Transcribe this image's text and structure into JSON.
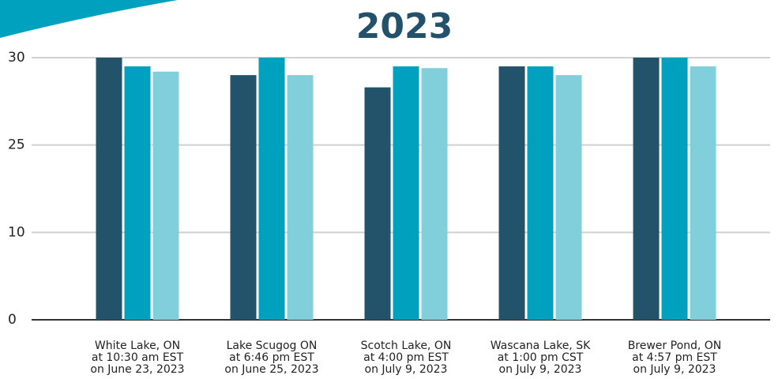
{
  "chart_data": {
    "type": "bar",
    "title": "2023",
    "categories": [
      [
        "White Lake, ON",
        "at 10:30 am EST",
        "on June 23, 2023"
      ],
      [
        "Lake Scugog ON",
        "at 6:46 pm EST",
        "on June 25, 2023"
      ],
      [
        "Scotch Lake, ON",
        "at 4:00 pm EST",
        "on July 9, 2023"
      ],
      [
        "Wascana Lake, SK",
        "at 1:00 pm CST",
        "on July 9, 2023"
      ],
      [
        "Brewer Pond, ON",
        "at 4:57 pm EST",
        "on July 9, 2023"
      ]
    ],
    "series": [
      {
        "color": "#23536b",
        "values": [
          30,
          29,
          28.3,
          29.5,
          30
        ]
      },
      {
        "color": "#00a1bf",
        "values": [
          29.5,
          30,
          29.5,
          29.5,
          30
        ]
      },
      {
        "color": "#82cfdc",
        "values": [
          29.2,
          29,
          29.4,
          29,
          29.5
        ]
      }
    ],
    "ylim": [
      0,
      30
    ],
    "yticks": [
      0,
      10,
      25,
      30
    ],
    "grid": true
  }
}
